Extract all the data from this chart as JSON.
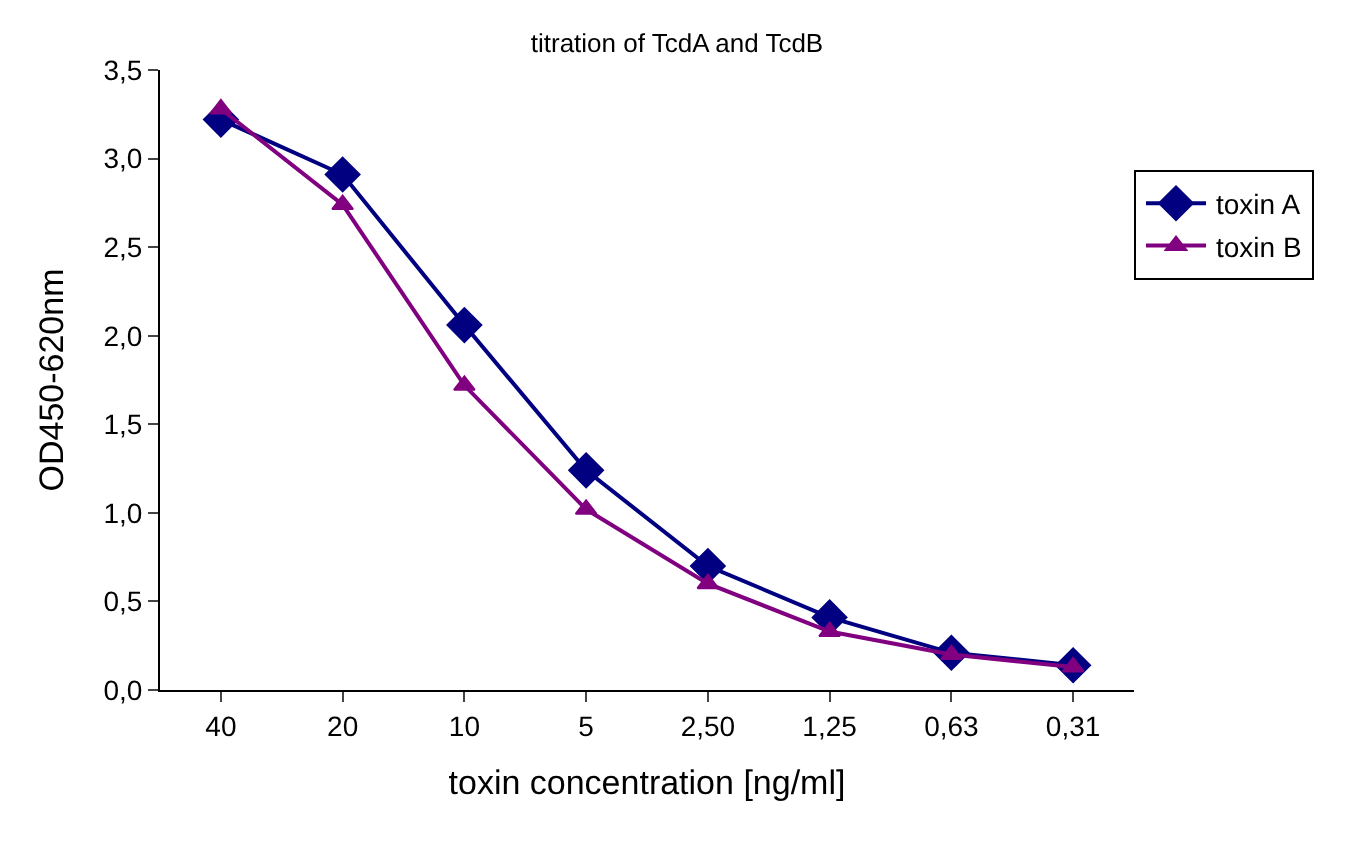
{
  "chart_data": {
    "type": "line",
    "title": "titration of TcdA and TcdB",
    "xlabel": "toxin concentration [ng/ml]",
    "ylabel": "OD450-620nm",
    "categories": [
      "40",
      "20",
      "10",
      "5",
      "2,50",
      "1,25",
      "0,63",
      "0,31"
    ],
    "series": [
      {
        "name": "toxin A",
        "color": "#000080",
        "marker": "diamond",
        "values": [
          3.22,
          2.91,
          2.06,
          1.24,
          0.7,
          0.41,
          0.21,
          0.14
        ]
      },
      {
        "name": "toxin B",
        "color": "#800080",
        "marker": "triangle",
        "values": [
          3.28,
          2.74,
          1.72,
          1.02,
          0.6,
          0.33,
          0.2,
          0.13
        ]
      }
    ],
    "ylim": [
      0,
      3.5
    ],
    "yticks": [
      {
        "value": 0,
        "label": "0,0"
      },
      {
        "value": 0.5,
        "label": "0,5"
      },
      {
        "value": 1,
        "label": "1,0"
      },
      {
        "value": 1.5,
        "label": "1,5"
      },
      {
        "value": 2,
        "label": "2,0"
      },
      {
        "value": 2.5,
        "label": "2,5"
      },
      {
        "value": 3,
        "label": "3,0"
      },
      {
        "value": 3.5,
        "label": "3,5"
      }
    ],
    "grid": false,
    "legend": "right",
    "line_style": "solid"
  }
}
